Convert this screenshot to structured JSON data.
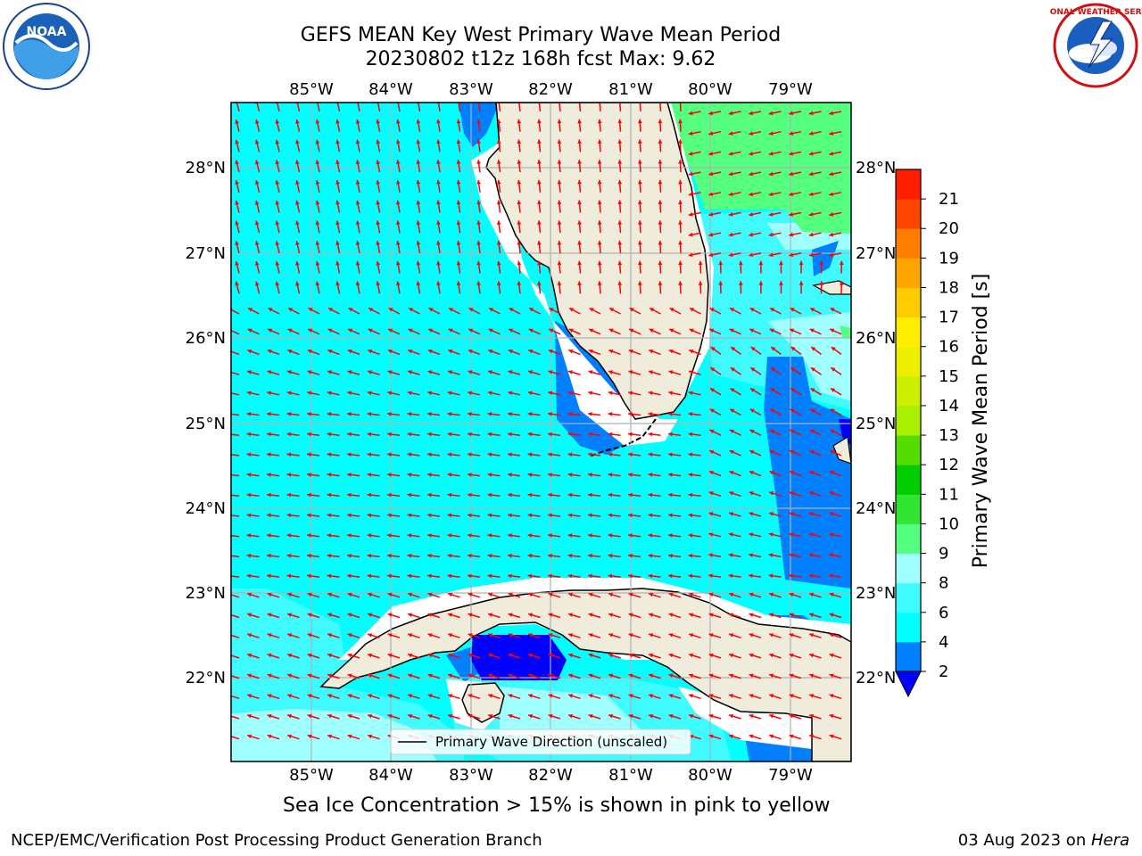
{
  "header": {
    "title_line1": "GEFS MEAN Key West Primary Wave Mean Period",
    "title_line2": "20230802 t12z 168h fcst   Max: 9.62"
  },
  "logos": {
    "left": {
      "icon": "noaa-logo",
      "text": "NOAA"
    },
    "right": {
      "icon": "national-weather-service-logo",
      "text": "NATIONAL WEATHER SERVICE"
    }
  },
  "map": {
    "longitude_labels": [
      "85°W",
      "84°W",
      "83°W",
      "82°W",
      "81°W",
      "80°W",
      "79°W"
    ],
    "latitude_labels": [
      "28°N",
      "27°N",
      "26°N",
      "25°N",
      "24°N",
      "23°N",
      "22°N"
    ],
    "legend_label": "Primary Wave Direction (unscaled)",
    "colors": {
      "land": "#efecdc",
      "arrow": "#ff0000",
      "grid": "#b0b0b0",
      "coast": "#000000"
    }
  },
  "colorbar": {
    "label": "Primary Wave Mean Period [s]",
    "ticks": [
      "2",
      "4",
      "6",
      "8",
      "9",
      "10",
      "11",
      "12",
      "13",
      "14",
      "15",
      "16",
      "17",
      "18",
      "19",
      "20",
      "21"
    ],
    "colors": [
      "#0080ff",
      "#00ffff",
      "#3ffaff",
      "#a0ffff",
      "#55ff80",
      "#33e533",
      "#00cc00",
      "#55dd00",
      "#aaee00",
      "#ccf000",
      "#eeee00",
      "#ffee00",
      "#ffcc00",
      "#ffa500",
      "#ff7d00",
      "#ff4600",
      "#ff1e00"
    ],
    "under_color": "#0000ff"
  },
  "notes": {
    "ice": "Sea Ice Concentration > 15% is shown in pink to yellow"
  },
  "footer": {
    "left": "NCEP/EMC/Verification Post Processing Product Generation Branch",
    "date": "03 Aug 2023 on ",
    "machine": "Hera"
  }
}
